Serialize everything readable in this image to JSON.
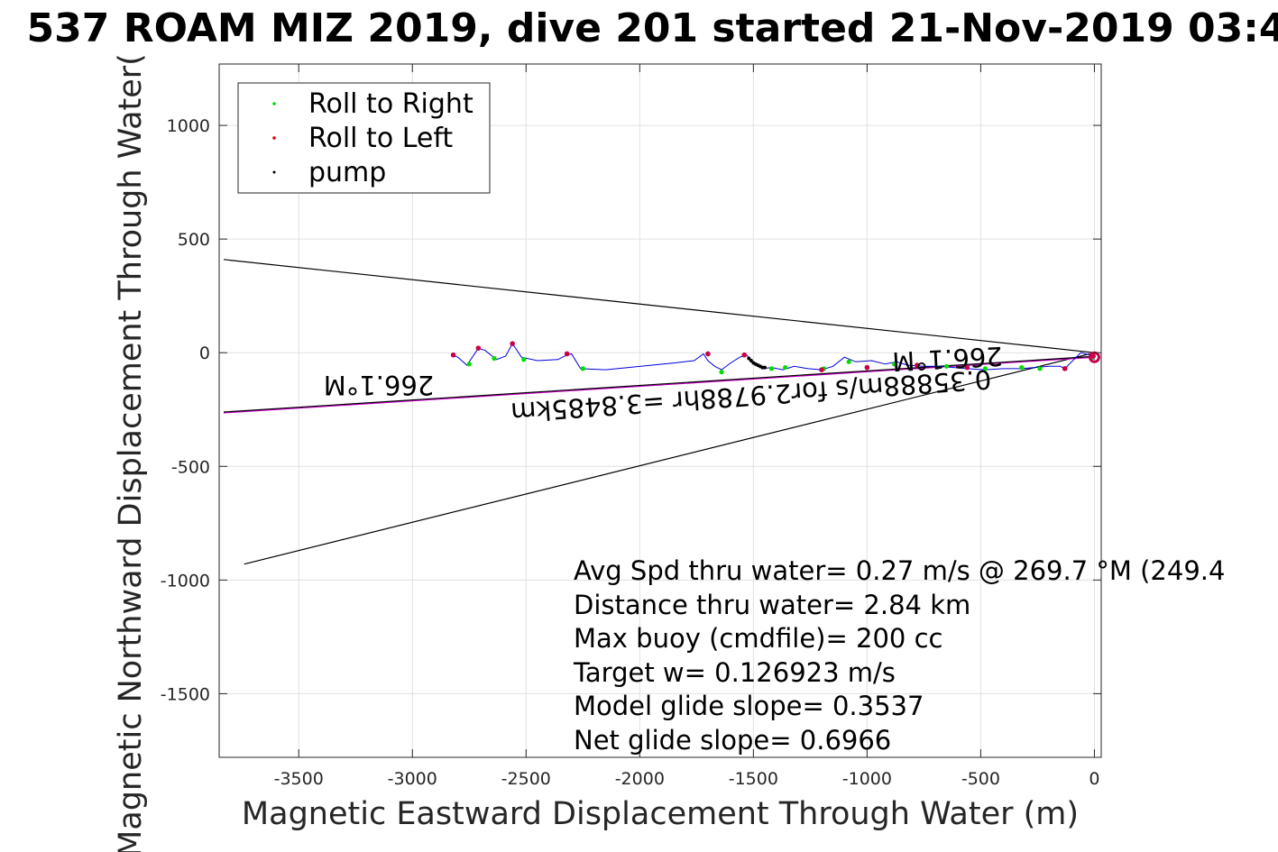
{
  "chart_data": {
    "type": "line",
    "title": "537 ROAM MIZ 2019, dive 201 started 21-Nov-2019 03:4",
    "xlabel": "Magnetic Eastward Displacement Through Water (m)",
    "ylabel": "Magnetic Northward Displacement Through Water(",
    "xlim": [
      -3850,
      30
    ],
    "ylim": [
      -1780,
      1270
    ],
    "xticks": [
      -3500,
      -3000,
      -2500,
      -2000,
      -1500,
      -1000,
      -500,
      0
    ],
    "xtick_labels": [
      "-3500",
      "-3000",
      "-2500",
      "-2000",
      "-1500",
      "-1000",
      "-500",
      "0"
    ],
    "yticks": [
      1000,
      500,
      0,
      -500,
      -1000,
      -1500
    ],
    "ytick_labels": [
      "1000",
      "500",
      "0",
      "-500",
      "-1000",
      "-1500"
    ],
    "grid": true,
    "legend_position": "top-left",
    "legend": [
      {
        "label": "Roll to Right",
        "color": "#00dd00"
      },
      {
        "label": "Roll to Left",
        "color": "#dd0000"
      },
      {
        "label": "pump",
        "color": "#000000"
      }
    ],
    "track": {
      "color": "#0000dd",
      "x": [
        0,
        -20,
        -60,
        -100,
        -130,
        -150,
        -200,
        -260,
        -320,
        -400,
        -480,
        -560,
        -620,
        -680,
        -750,
        -820,
        -870,
        -920,
        -980,
        -1050,
        -1100,
        -1150,
        -1200,
        -1260,
        -1320,
        -1370,
        -1420,
        -1460,
        -1500,
        -1530,
        -1560,
        -1600,
        -1640,
        -1670,
        -1700,
        -1720,
        -1760,
        -1850,
        -1950,
        -2050,
        -2150,
        -2260,
        -2300,
        -2320,
        -2360,
        -2450,
        -2520,
        -2560,
        -2590,
        -2630,
        -2680,
        -2710,
        -2760,
        -2800,
        -2830
      ],
      "y": [
        -30,
        -10,
        0,
        -40,
        -70,
        -60,
        -60,
        -65,
        -70,
        -70,
        -75,
        -70,
        -65,
        -60,
        -60,
        -55,
        -40,
        -50,
        -35,
        -40,
        -20,
        -60,
        -75,
        -70,
        -60,
        -75,
        -65,
        -70,
        -45,
        -10,
        -20,
        -45,
        -75,
        -60,
        -35,
        -5,
        -35,
        -45,
        -55,
        -65,
        -75,
        -70,
        -5,
        -10,
        -30,
        -35,
        -20,
        40,
        -15,
        -30,
        10,
        20,
        -55,
        -20,
        -10
      ]
    },
    "roll_right": {
      "x": [
        -10,
        -240,
        -320,
        -480,
        -650,
        -880,
        -1080,
        -1190,
        -1360,
        -1420,
        -1640,
        -2250,
        -2510,
        -2640,
        -2750
      ],
      "y": [
        -20,
        -70,
        -65,
        -70,
        -60,
        -50,
        -40,
        -70,
        -65,
        -70,
        -85,
        -70,
        -30,
        -25,
        -50
      ]
    },
    "roll_left": {
      "x": [
        -5,
        -130,
        -560,
        -780,
        -1000,
        -1200,
        -1540,
        -1700,
        -2320,
        -2560,
        -2710,
        -2820
      ],
      "y": [
        -15,
        -70,
        -65,
        -55,
        -65,
        -75,
        -10,
        -5,
        -5,
        40,
        20,
        -10
      ]
    },
    "pump": {
      "x": [
        -1520,
        -1510,
        -1500,
        -1490,
        -1480,
        -1470,
        -1460,
        -1450
      ],
      "y": [
        -25,
        -35,
        -45,
        -50,
        -55,
        -60,
        -65,
        -65
      ]
    },
    "reference_lines": [
      {
        "color": "#000000",
        "x": [
          0,
          -3830
        ],
        "y": [
          0,
          410
        ]
      },
      {
        "color": "#000000",
        "x": [
          0,
          -3740
        ],
        "y": [
          0,
          -930
        ]
      },
      {
        "color": "#cc00cc",
        "x": [
          0,
          -3830
        ],
        "y": [
          -20,
          -265
        ]
      },
      {
        "color": "#000000",
        "x": [
          0,
          -3830
        ],
        "y": [
          -16,
          -261
        ]
      }
    ],
    "heading_labels": [
      "266.1°M",
      "266.1°M",
      "0.35888m/s for2.9788hr =3.8485km"
    ],
    "annotations": [
      "Avg Spd thru water=  0.27 m/s @ 269.7 °M (249.4",
      "Distance thru water=  2.84 km",
      "Max buoy (cmdfile)= 200 cc",
      "Target w= 0.126923 m/s",
      "Model glide slope= 0.3537",
      "Net glide slope= 0.6966"
    ]
  }
}
